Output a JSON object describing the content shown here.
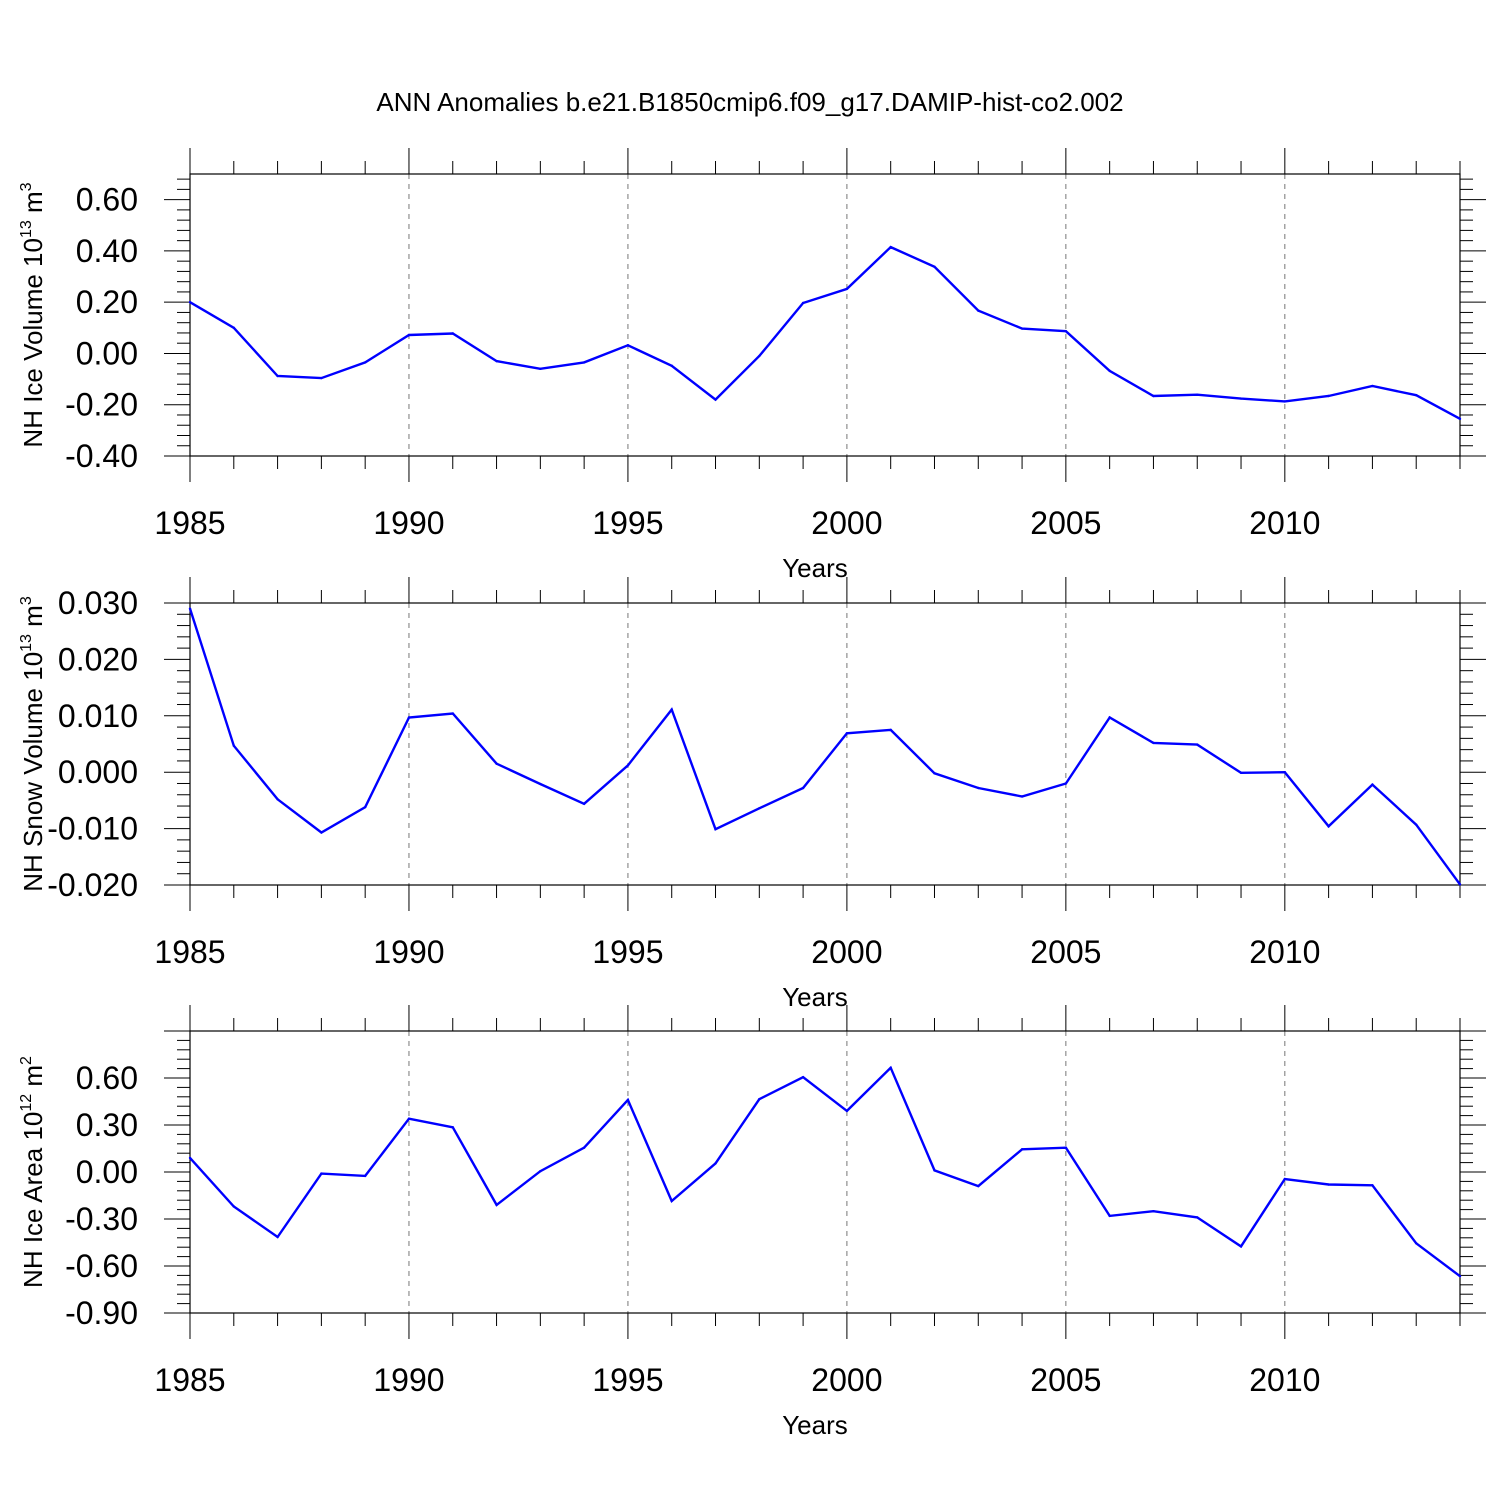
{
  "figure_title": "ANN Anomalies b.e21.B1850cmip6.f09_g17.DAMIP-hist-co2.002",
  "chart_data": [
    {
      "type": "line",
      "xlabel": "Years",
      "ylabel_parts": {
        "base": "NH Ice Volume 10",
        "exp": "13",
        "unit": " m",
        "unit_exp": "3"
      },
      "xlim": [
        1985,
        2014
      ],
      "ylim": [
        -0.4,
        0.7
      ],
      "xticks": [
        1985,
        1990,
        1995,
        2000,
        2005,
        2010
      ],
      "xtick_labels": [
        "1985",
        "1990",
        "1995",
        "2000",
        "2005",
        "2010"
      ],
      "yticks": [
        -0.4,
        -0.2,
        0.0,
        0.2,
        0.4,
        0.6
      ],
      "ytick_labels": [
        "-0.40",
        "-0.20",
        "0.00",
        "0.20",
        "0.40",
        "0.60"
      ],
      "line_color": "#0000ff",
      "x": [
        1985,
        1986,
        1987,
        1988,
        1989,
        1990,
        1991,
        1992,
        1993,
        1994,
        1995,
        1996,
        1997,
        1998,
        1999,
        2000,
        2001,
        2002,
        2003,
        2004,
        2005,
        2006,
        2007,
        2008,
        2009,
        2010,
        2011,
        2012,
        2013,
        2014
      ],
      "y": [
        0.2,
        0.1,
        -0.088,
        -0.096,
        -0.035,
        0.072,
        0.078,
        -0.03,
        -0.06,
        -0.035,
        0.032,
        -0.048,
        -0.18,
        -0.01,
        0.197,
        0.252,
        0.415,
        0.338,
        0.167,
        0.097,
        0.087,
        -0.068,
        -0.166,
        -0.161,
        -0.176,
        -0.187,
        -0.166,
        -0.127,
        -0.163,
        -0.255
      ]
    },
    {
      "type": "line",
      "xlabel": "Years",
      "ylabel_parts": {
        "base": "NH Snow Volume 10",
        "exp": "13",
        "unit": " m",
        "unit_exp": "3"
      },
      "xlim": [
        1985,
        2014
      ],
      "ylim": [
        -0.02,
        0.03
      ],
      "xticks": [
        1985,
        1990,
        1995,
        2000,
        2005,
        2010
      ],
      "xtick_labels": [
        "1985",
        "1990",
        "1995",
        "2000",
        "2005",
        "2010"
      ],
      "yticks": [
        -0.02,
        -0.01,
        0.0,
        0.01,
        0.02,
        0.03
      ],
      "ytick_labels": [
        "-0.020",
        "-0.010",
        "0.000",
        "0.010",
        "0.020",
        "0.030"
      ],
      "line_color": "#0000ff",
      "x": [
        1985,
        1986,
        1987,
        1988,
        1989,
        1990,
        1991,
        1992,
        1993,
        1994,
        1995,
        1996,
        1997,
        1998,
        1999,
        2000,
        2001,
        2002,
        2003,
        2004,
        2005,
        2006,
        2007,
        2008,
        2009,
        2010,
        2011,
        2012,
        2013,
        2014
      ],
      "y": [
        0.029,
        0.0047,
        -0.0048,
        -0.0107,
        -0.0062,
        0.0097,
        0.0104,
        0.0015,
        -0.0021,
        -0.0056,
        0.0012,
        0.0111,
        -0.0101,
        -0.0064,
        -0.0028,
        0.0069,
        0.0075,
        -0.0002,
        -0.0028,
        -0.0043,
        -0.002,
        0.0097,
        0.0052,
        0.0049,
        -0.0001,
        0.0,
        -0.0096,
        -0.0022,
        -0.0093,
        -0.0199
      ]
    },
    {
      "type": "line",
      "xlabel": "Years",
      "ylabel_parts": {
        "base": "NH Ice Area 10",
        "exp": "12",
        "unit": " m",
        "unit_exp": "2"
      },
      "xlim": [
        1985,
        2014
      ],
      "ylim": [
        -0.9,
        0.9
      ],
      "xticks": [
        1985,
        1990,
        1995,
        2000,
        2005,
        2010
      ],
      "xtick_labels": [
        "1985",
        "1990",
        "1995",
        "2000",
        "2005",
        "2010"
      ],
      "yticks": [
        -0.9,
        -0.6,
        -0.3,
        0.0,
        0.3,
        0.6
      ],
      "ytick_labels": [
        "-0.90",
        "-0.60",
        "-0.30",
        "0.00",
        "0.30",
        "0.60"
      ],
      "line_color": "#0000ff",
      "x": [
        1985,
        1986,
        1987,
        1988,
        1989,
        1990,
        1991,
        1992,
        1993,
        1994,
        1995,
        1996,
        1997,
        1998,
        1999,
        2000,
        2001,
        2002,
        2003,
        2004,
        2005,
        2006,
        2007,
        2008,
        2009,
        2010,
        2011,
        2012,
        2013,
        2014
      ],
      "y": [
        0.09,
        -0.22,
        -0.415,
        -0.01,
        -0.025,
        0.34,
        0.285,
        -0.21,
        0.005,
        0.155,
        0.46,
        -0.185,
        0.055,
        0.465,
        0.605,
        0.39,
        0.665,
        0.01,
        -0.09,
        0.145,
        0.155,
        -0.28,
        -0.25,
        -0.29,
        -0.475,
        -0.045,
        -0.08,
        -0.085,
        -0.455,
        -0.665
      ]
    }
  ]
}
